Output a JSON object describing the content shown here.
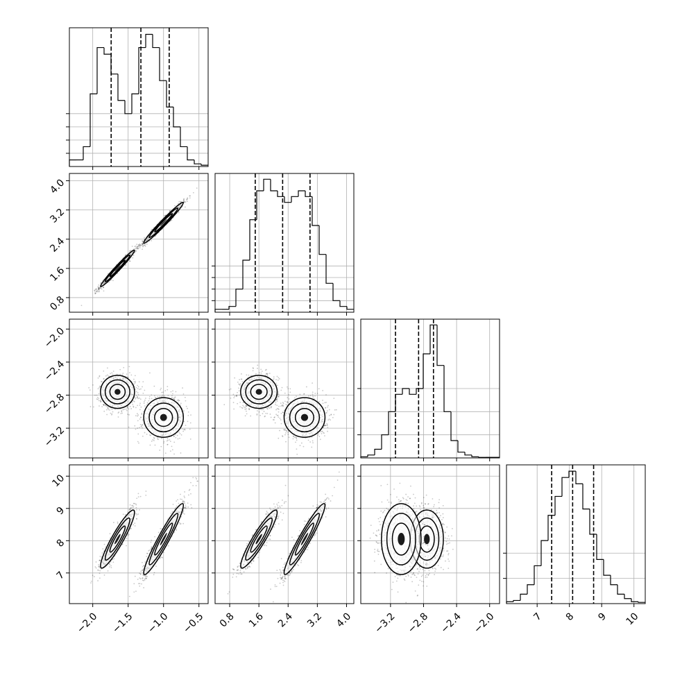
{
  "chart_data": {
    "type": "corner",
    "n_params": 4,
    "params": [
      {
        "range": [
          -2.33,
          -0.37
        ],
        "ticks": [
          -2.0,
          -1.5,
          -1.0,
          -0.5
        ],
        "tick_labels": [
          "−2.0",
          "−1.5",
          "−1.0",
          "−0.5"
        ],
        "quantiles": [
          -1.74,
          -1.32,
          -0.92
        ],
        "hist_counts": [
          1,
          1,
          3,
          11,
          18,
          17,
          14,
          10,
          8,
          11,
          18,
          20,
          18,
          13,
          9,
          6,
          3,
          1,
          0.4,
          0.2
        ],
        "hist_ymax": 21,
        "hist_y_ticks": [
          2,
          4,
          6,
          8
        ],
        "modes": [
          {
            "center": -1.65,
            "sd": 0.12
          },
          {
            "center": -1.0,
            "sd": 0.14
          }
        ]
      },
      {
        "range": [
          0.4,
          4.2
        ],
        "ticks": [
          0.8,
          1.6,
          2.4,
          3.2,
          4.0
        ],
        "tick_labels": [
          "0.8",
          "1.6",
          "2.4",
          "3.2",
          "4.0"
        ],
        "quantiles": [
          1.5,
          2.25,
          3.0
        ],
        "hist_counts": [
          0.5,
          0.5,
          1,
          4,
          9,
          16,
          21,
          23,
          21,
          20,
          19,
          20,
          21,
          20,
          15,
          10,
          5,
          2,
          1,
          0.5
        ],
        "hist_ymax": 24,
        "hist_y_ticks": [
          2,
          4,
          6,
          8
        ],
        "modes": [
          {
            "center": 1.6,
            "sd": 0.25
          },
          {
            "center": 2.85,
            "sd": 0.28
          }
        ]
      },
      {
        "range": [
          -3.56,
          -1.88
        ],
        "ticks": [
          -3.2,
          -2.8,
          -2.4,
          -2.0
        ],
        "tick_labels": [
          "−3.2",
          "−2.8",
          "−2.4",
          "−2.0"
        ],
        "quantiles": [
          -3.14,
          -2.86,
          -2.68
        ],
        "hist_counts": [
          0.2,
          0.5,
          1.5,
          4,
          8,
          11,
          12,
          11,
          12,
          18,
          23,
          16,
          8,
          3,
          1,
          0.5,
          0.2,
          0.1,
          0.1,
          0.1
        ],
        "hist_ymax": 24,
        "hist_y_ticks": [
          4,
          8,
          12
        ],
        "modes": [
          {
            "center": -2.76,
            "sd": 0.1
          },
          {
            "center": -3.07,
            "sd": 0.12
          }
        ]
      },
      {
        "range": [
          6.05,
          10.35
        ],
        "ticks": [
          7,
          8,
          9,
          10
        ],
        "tick_labels": [
          "7",
          "8",
          "9",
          "10"
        ],
        "quantiles": [
          7.45,
          8.1,
          8.75
        ],
        "hist_counts": [
          0.3,
          0.5,
          1.5,
          3,
          6,
          10,
          14,
          17,
          20,
          21,
          19,
          15,
          11,
          7,
          4.5,
          3,
          1.5,
          0.8,
          0.3,
          0.2
        ],
        "hist_ymax": 22,
        "hist_y_ticks": [
          4,
          8
        ],
        "modes": [
          {
            "center": 8.1,
            "sd": 0.55
          }
        ]
      }
    ],
    "mode_groups": [
      {
        "means": [
          -1.65,
          1.6,
          -2.76,
          8.05
        ],
        "sd": [
          0.12,
          0.25,
          0.1,
          0.45
        ],
        "corr_01": 0.98,
        "corr_03": 0.92,
        "corr_13": 0.92
      },
      {
        "means": [
          -1.0,
          2.85,
          -3.07,
          8.05
        ],
        "sd": [
          0.14,
          0.28,
          0.12,
          0.55
        ],
        "corr_01": 0.98,
        "corr_03": 0.95,
        "corr_13": 0.95
      }
    ],
    "quantile_levels": [
      0.16,
      0.5,
      0.84
    ],
    "grid": true,
    "xlabel": "",
    "ylabel": "",
    "title": ""
  }
}
